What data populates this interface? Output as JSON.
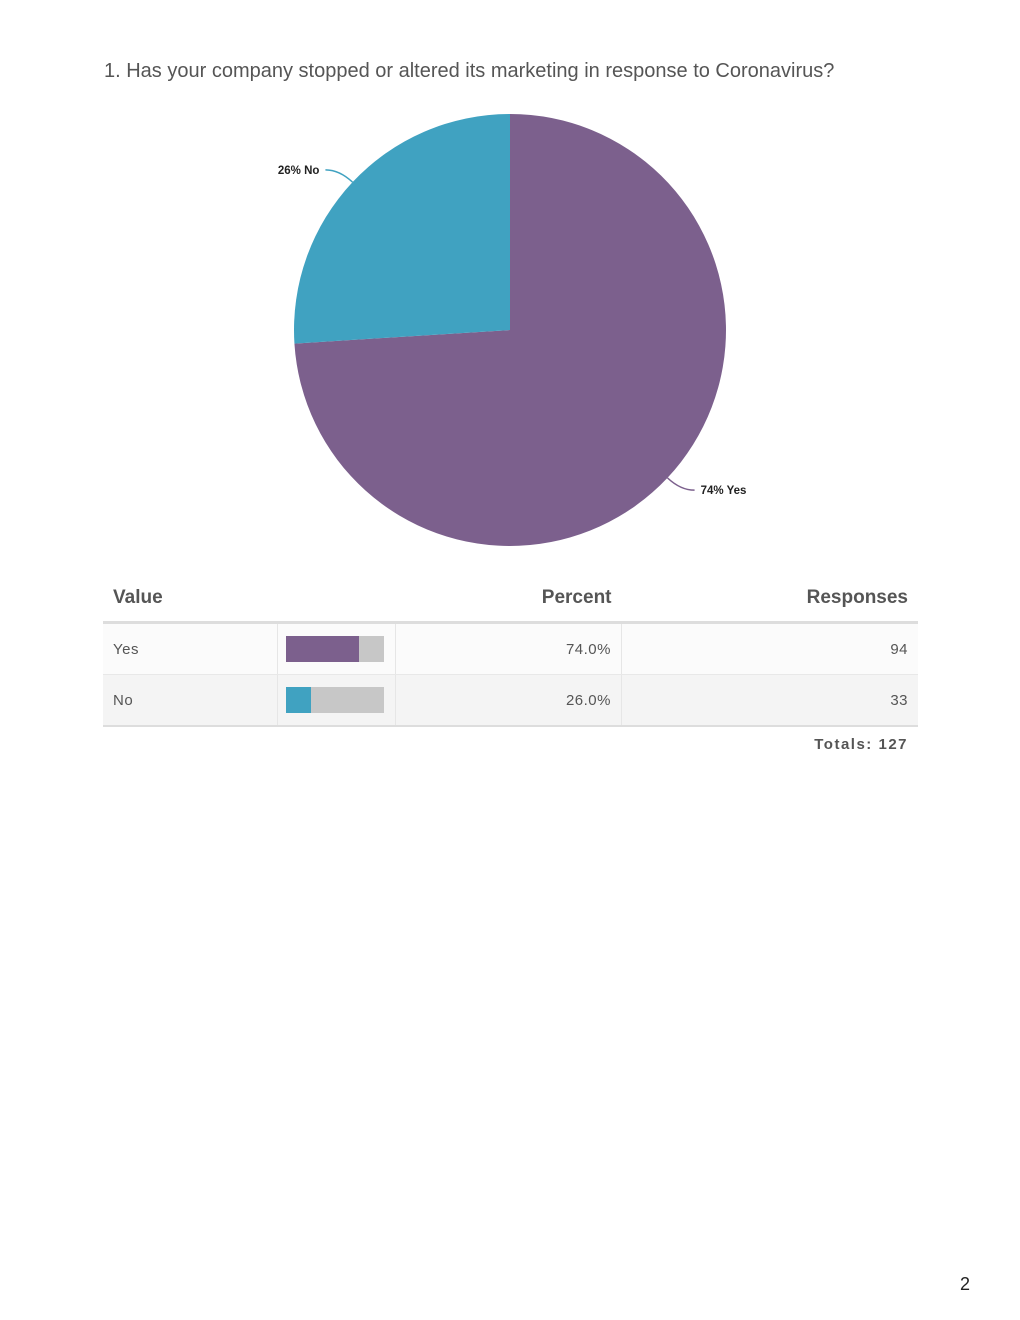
{
  "question": {
    "title": "1. Has your company stopped or altered its marketing in response to Coronavirus?"
  },
  "chart_data": {
    "type": "pie",
    "title": "1. Has your company stopped or altered its marketing in response to Coronavirus?",
    "categories": [
      "Yes",
      "No"
    ],
    "values": [
      74,
      26
    ],
    "labels": [
      "74% Yes",
      "26% No"
    ],
    "colors": [
      "#7c608d",
      "#40a2c1"
    ]
  },
  "table": {
    "headers": {
      "value": "Value",
      "percent": "Percent",
      "responses": "Responses"
    },
    "rows": [
      {
        "value": "Yes",
        "percent": "74.0%",
        "responses": "94",
        "fraction": 0.74,
        "color": "#7c608d"
      },
      {
        "value": "No",
        "percent": "26.0%",
        "responses": "33",
        "fraction": 0.26,
        "color": "#40a2c1"
      }
    ],
    "totals": "Totals: 127"
  },
  "page": {
    "number": "2"
  }
}
